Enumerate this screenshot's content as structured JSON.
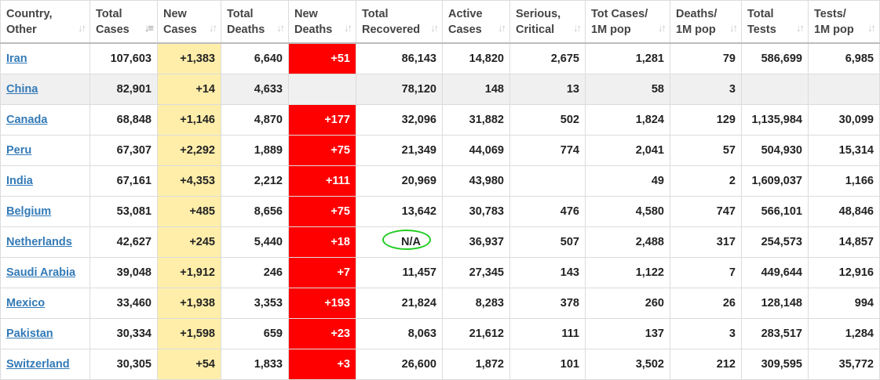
{
  "columns": [
    {
      "line1": "Country,",
      "line2": "Other"
    },
    {
      "line1": "Total",
      "line2": "Cases"
    },
    {
      "line1": "New",
      "line2": "Cases"
    },
    {
      "line1": "Total",
      "line2": "Deaths"
    },
    {
      "line1": "New",
      "line2": "Deaths"
    },
    {
      "line1": "Total",
      "line2": "Recovered"
    },
    {
      "line1": "Active",
      "line2": "Cases"
    },
    {
      "line1": "Serious,",
      "line2": "Critical"
    },
    {
      "line1": "Tot Cases/",
      "line2": "1M pop"
    },
    {
      "line1": "Deaths/",
      "line2": "1M pop"
    },
    {
      "line1": "Total",
      "line2": "Tests"
    },
    {
      "line1": "Tests/",
      "line2": "1M pop"
    }
  ],
  "sort_icon": "sort-arrows-icon",
  "active_sort_icon": "sort-descending-icon",
  "colors": {
    "new_cases_bg": "#ffeeaa",
    "new_deaths_bg": "#ff0000",
    "link": "#337ab7",
    "na_highlight": "#22cc22",
    "alt_row_bg": "#f0f0f0"
  },
  "rows": [
    {
      "country": "Iran",
      "total_cases": "107,603",
      "new_cases": "+1,383",
      "total_deaths": "6,640",
      "new_deaths": "+51",
      "total_recovered": "86,143",
      "active_cases": "14,820",
      "serious_critical": "2,675",
      "tot_cases_1m": "1,281",
      "deaths_1m": "79",
      "total_tests": "586,699",
      "tests_1m": "6,985"
    },
    {
      "country": "China",
      "total_cases": "82,901",
      "new_cases": "+14",
      "total_deaths": "4,633",
      "new_deaths": "",
      "total_recovered": "78,120",
      "active_cases": "148",
      "serious_critical": "13",
      "tot_cases_1m": "58",
      "deaths_1m": "3",
      "total_tests": "",
      "tests_1m": ""
    },
    {
      "country": "Canada",
      "total_cases": "68,848",
      "new_cases": "+1,146",
      "total_deaths": "4,870",
      "new_deaths": "+177",
      "total_recovered": "32,096",
      "active_cases": "31,882",
      "serious_critical": "502",
      "tot_cases_1m": "1,824",
      "deaths_1m": "129",
      "total_tests": "1,135,984",
      "tests_1m": "30,099"
    },
    {
      "country": "Peru",
      "total_cases": "67,307",
      "new_cases": "+2,292",
      "total_deaths": "1,889",
      "new_deaths": "+75",
      "total_recovered": "21,349",
      "active_cases": "44,069",
      "serious_critical": "774",
      "tot_cases_1m": "2,041",
      "deaths_1m": "57",
      "total_tests": "504,930",
      "tests_1m": "15,314"
    },
    {
      "country": "India",
      "total_cases": "67,161",
      "new_cases": "+4,353",
      "total_deaths": "2,212",
      "new_deaths": "+111",
      "total_recovered": "20,969",
      "active_cases": "43,980",
      "serious_critical": "",
      "tot_cases_1m": "49",
      "deaths_1m": "2",
      "total_tests": "1,609,037",
      "tests_1m": "1,166"
    },
    {
      "country": "Belgium",
      "total_cases": "53,081",
      "new_cases": "+485",
      "total_deaths": "8,656",
      "new_deaths": "+75",
      "total_recovered": "13,642",
      "active_cases": "30,783",
      "serious_critical": "476",
      "tot_cases_1m": "4,580",
      "deaths_1m": "747",
      "total_tests": "566,101",
      "tests_1m": "48,846"
    },
    {
      "country": "Netherlands",
      "total_cases": "42,627",
      "new_cases": "+245",
      "total_deaths": "5,440",
      "new_deaths": "+18",
      "total_recovered": "N/A",
      "active_cases": "36,937",
      "serious_critical": "507",
      "tot_cases_1m": "2,488",
      "deaths_1m": "317",
      "total_tests": "254,573",
      "tests_1m": "14,857"
    },
    {
      "country": "Saudi Arabia",
      "total_cases": "39,048",
      "new_cases": "+1,912",
      "total_deaths": "246",
      "new_deaths": "+7",
      "total_recovered": "11,457",
      "active_cases": "27,345",
      "serious_critical": "143",
      "tot_cases_1m": "1,122",
      "deaths_1m": "7",
      "total_tests": "449,644",
      "tests_1m": "12,916"
    },
    {
      "country": "Mexico",
      "total_cases": "33,460",
      "new_cases": "+1,938",
      "total_deaths": "3,353",
      "new_deaths": "+193",
      "total_recovered": "21,824",
      "active_cases": "8,283",
      "serious_critical": "378",
      "tot_cases_1m": "260",
      "deaths_1m": "26",
      "total_tests": "128,148",
      "tests_1m": "994"
    },
    {
      "country": "Pakistan",
      "total_cases": "30,334",
      "new_cases": "+1,598",
      "total_deaths": "659",
      "new_deaths": "+23",
      "total_recovered": "8,063",
      "active_cases": "21,612",
      "serious_critical": "111",
      "tot_cases_1m": "137",
      "deaths_1m": "3",
      "total_tests": "283,517",
      "tests_1m": "1,284"
    },
    {
      "country": "Switzerland",
      "total_cases": "30,305",
      "new_cases": "+54",
      "total_deaths": "1,833",
      "new_deaths": "+3",
      "total_recovered": "26,600",
      "active_cases": "1,872",
      "serious_critical": "101",
      "tot_cases_1m": "3,502",
      "deaths_1m": "212",
      "total_tests": "309,595",
      "tests_1m": "35,772"
    }
  ]
}
